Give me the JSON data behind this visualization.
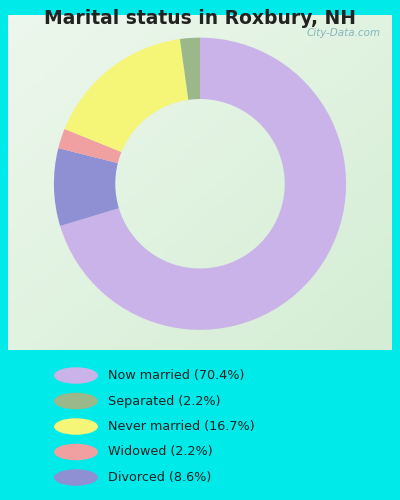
{
  "title": "Marital status in Roxbury, NH",
  "slices": [
    70.4,
    8.6,
    2.2,
    16.7,
    2.2
  ],
  "slice_order_labels": [
    "Now married",
    "Divorced",
    "Widowed",
    "Never married",
    "Separated"
  ],
  "colors": [
    "#c9b3e8",
    "#8f8fd4",
    "#f0a0a0",
    "#f5f577",
    "#9ab88a"
  ],
  "legend_labels": [
    "Now married (70.4%)",
    "Separated (2.2%)",
    "Never married (16.7%)",
    "Widowed (2.2%)",
    "Divorced (8.6%)"
  ],
  "legend_colors": [
    "#c9b3e8",
    "#9ab88a",
    "#f5f577",
    "#f0a0a0",
    "#8f8fd4"
  ],
  "bg_cyan": "#00eaea",
  "chart_bg": "#e8f5e8",
  "title_color": "#222222",
  "title_fontsize": 13.5,
  "watermark": "City-Data.com",
  "start_angle": 90,
  "donut_width": 0.42
}
